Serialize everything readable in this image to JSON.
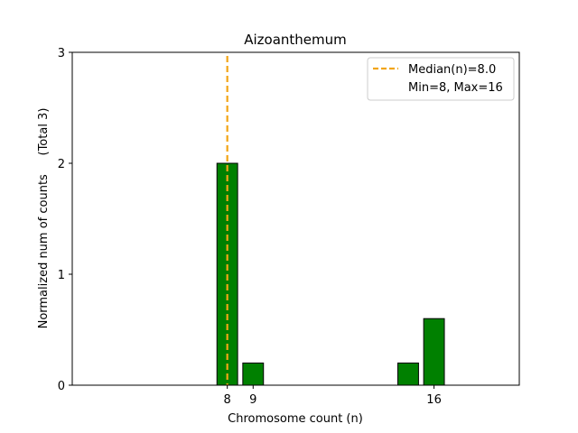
{
  "chart_data": {
    "type": "bar",
    "title": "Aizoanthemum",
    "xlabel": "Chromosome count (n)",
    "ylabel": "Normalized num of counts     (Total 3)",
    "xlim": [
      2,
      19.3
    ],
    "ylim": [
      0,
      3
    ],
    "x_ticks": [
      8,
      9,
      16
    ],
    "y_ticks": [
      0,
      1,
      2,
      3
    ],
    "bar_width": 0.8,
    "bars": [
      {
        "x": 8,
        "value": 2.0
      },
      {
        "x": 9,
        "value": 0.2
      },
      {
        "x": 15,
        "value": 0.2
      },
      {
        "x": 16,
        "value": 0.6
      }
    ],
    "median_line": {
      "x": 8,
      "label": "Median(n)=8.0"
    },
    "legend": {
      "placement": "top-right",
      "entries": [
        "Median(n)=8.0",
        "Min=8, Max=16"
      ]
    },
    "colors": {
      "bar_fill": "#008000",
      "bar_edge": "#000000",
      "median": "#f2a516"
    },
    "grid": false
  }
}
